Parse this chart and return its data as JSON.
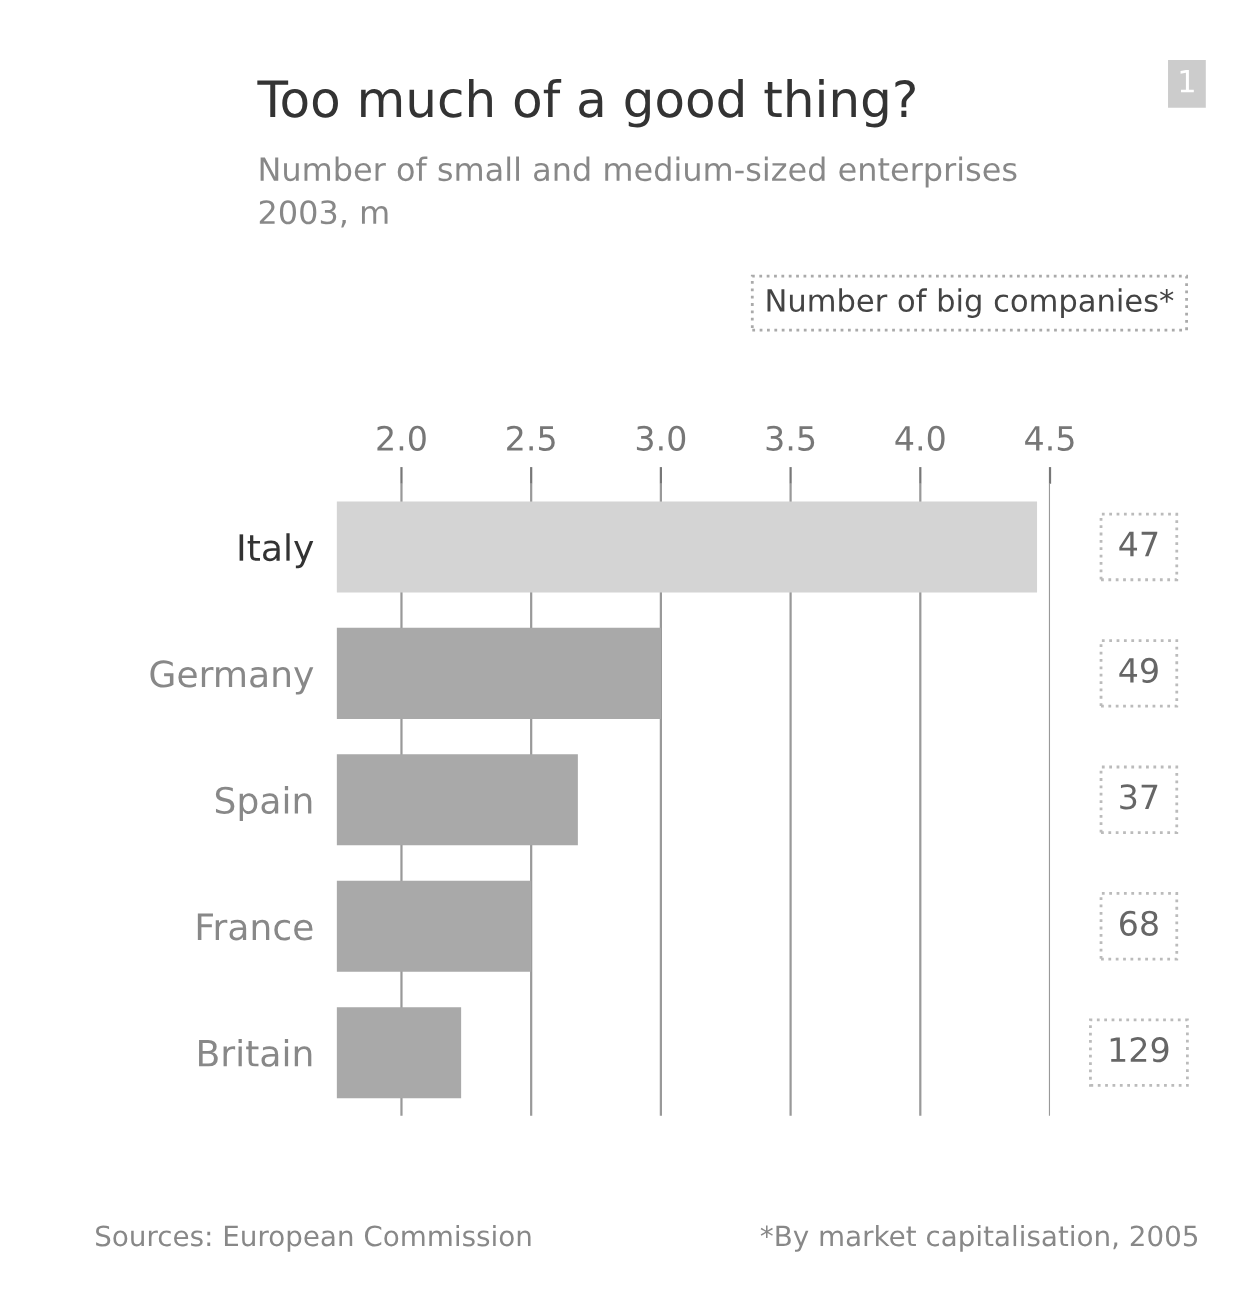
{
  "chart_data": {
    "type": "bar",
    "orientation": "horizontal",
    "title": "Too much of a good thing?",
    "subtitle": "Number of small and medium-sized enterprises\n2003, m",
    "categories": [
      "Italy",
      "Germany",
      "Spain",
      "France",
      "Britain"
    ],
    "values": [
      4.45,
      3.0,
      2.68,
      2.5,
      2.23
    ],
    "colors": [
      "#d4d4d4",
      "#a9a9a9",
      "#a9a9a9",
      "#a9a9a9",
      "#a9a9a9"
    ],
    "xlim": [
      1.75,
      4.5
    ],
    "xticks": [
      {
        "value": 2.0,
        "label": "2.0"
      },
      {
        "value": 2.5,
        "label": "2.5"
      },
      {
        "value": 3.0,
        "label": "3.0"
      },
      {
        "value": 3.5,
        "label": "3.5"
      },
      {
        "value": 4.0,
        "label": "4.0"
      },
      {
        "value": 4.5,
        "label": "4.5"
      }
    ],
    "grid": "x",
    "annotations": [
      "Number of big companies*",
      "Sources: European Commission",
      "*By market capitalisation, 2005",
      "1",
      "47",
      "49",
      "37",
      "68",
      "129"
    ]
  }
}
